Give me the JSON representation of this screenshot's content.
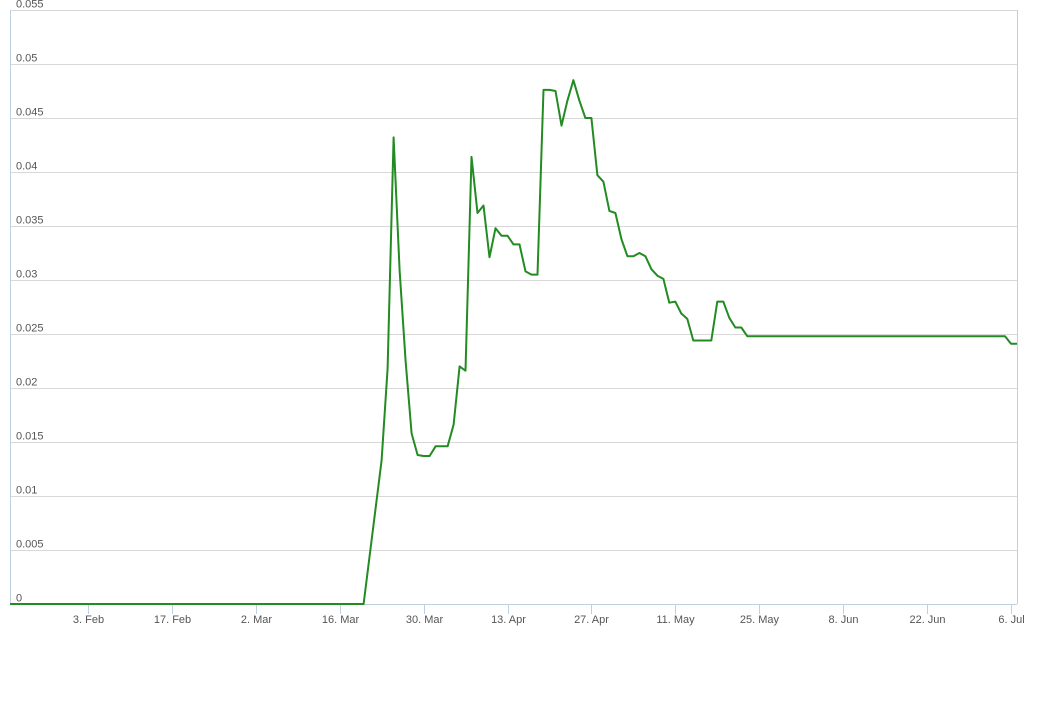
{
  "chart_data": {
    "type": "line",
    "title": "",
    "xlabel": "",
    "ylabel": "",
    "ylim": [
      0,
      0.055
    ],
    "y_ticks": [
      {
        "value": 0,
        "label": "0"
      },
      {
        "value": 0.005,
        "label": "0.005"
      },
      {
        "value": 0.01,
        "label": "0.01"
      },
      {
        "value": 0.015,
        "label": "0.015"
      },
      {
        "value": 0.02,
        "label": "0.02"
      },
      {
        "value": 0.025,
        "label": "0.025"
      },
      {
        "value": 0.03,
        "label": "0.03"
      },
      {
        "value": 0.035,
        "label": "0.035"
      },
      {
        "value": 0.04,
        "label": "0.04"
      },
      {
        "value": 0.045,
        "label": "0.045"
      },
      {
        "value": 0.05,
        "label": "0.05"
      },
      {
        "value": 0.055,
        "label": "0.055"
      }
    ],
    "x_range": [
      "2020-01-21",
      "2020-07-07"
    ],
    "x_ticks": [
      {
        "date": "2020-02-03",
        "label": "3. Feb"
      },
      {
        "date": "2020-02-17",
        "label": "17. Feb"
      },
      {
        "date": "2020-03-02",
        "label": "2. Mar"
      },
      {
        "date": "2020-03-16",
        "label": "16. Mar"
      },
      {
        "date": "2020-03-30",
        "label": "30. Mar"
      },
      {
        "date": "2020-04-13",
        "label": "13. Apr"
      },
      {
        "date": "2020-04-27",
        "label": "27. Apr"
      },
      {
        "date": "2020-05-11",
        "label": "11. May"
      },
      {
        "date": "2020-05-25",
        "label": "25. May"
      },
      {
        "date": "2020-06-08",
        "label": "8. Jun"
      },
      {
        "date": "2020-06-22",
        "label": "22. Jun"
      },
      {
        "date": "2020-07-06",
        "label": "6. Jul"
      }
    ],
    "grid": true,
    "legend": "none",
    "colors": {
      "line": "#228b22",
      "grid": "#d8d8d8",
      "axis": "#c0d0e0",
      "tick_label": "#555555"
    },
    "series": [
      {
        "x": [
          "2020-01-21",
          "2020-02-10",
          "2020-03-01",
          "2020-03-20",
          "2020-03-23",
          "2020-03-24",
          "2020-03-25",
          "2020-03-26",
          "2020-03-27",
          "2020-03-28",
          "2020-03-29",
          "2020-03-30",
          "2020-03-31",
          "2020-04-01",
          "2020-04-02",
          "2020-04-03",
          "2020-04-04",
          "2020-04-05",
          "2020-04-06",
          "2020-04-07",
          "2020-04-08",
          "2020-04-09",
          "2020-04-10",
          "2020-04-11",
          "2020-04-12",
          "2020-04-13",
          "2020-04-14",
          "2020-04-15",
          "2020-04-16",
          "2020-04-17",
          "2020-04-18",
          "2020-04-19",
          "2020-04-20",
          "2020-04-21",
          "2020-04-22",
          "2020-04-23",
          "2020-04-24",
          "2020-04-25",
          "2020-04-26",
          "2020-04-27",
          "2020-04-28",
          "2020-04-29",
          "2020-04-30",
          "2020-05-01",
          "2020-05-02",
          "2020-05-03",
          "2020-05-04",
          "2020-05-05",
          "2020-05-06",
          "2020-05-07",
          "2020-05-08",
          "2020-05-09",
          "2020-05-10",
          "2020-05-11",
          "2020-05-12",
          "2020-05-13",
          "2020-05-14",
          "2020-05-15",
          "2020-05-16",
          "2020-05-17",
          "2020-05-18",
          "2020-05-19",
          "2020-05-20",
          "2020-05-21",
          "2020-05-22",
          "2020-05-23",
          "2020-05-24",
          "2020-05-25",
          "2020-05-26",
          "2020-05-27",
          "2020-05-28",
          "2020-05-29",
          "2020-05-30",
          "2020-05-31",
          "2020-06-01",
          "2020-06-02",
          "2020-06-03",
          "2020-06-04",
          "2020-06-05",
          "2020-06-06",
          "2020-06-07",
          "2020-06-08",
          "2020-06-09",
          "2020-06-10",
          "2020-06-11",
          "2020-06-12",
          "2020-06-13",
          "2020-06-14",
          "2020-06-15",
          "2020-06-16",
          "2020-06-17",
          "2020-06-18",
          "2020-06-19",
          "2020-06-20",
          "2020-06-21",
          "2020-06-22",
          "2020-06-23",
          "2020-06-24",
          "2020-06-25",
          "2020-06-26",
          "2020-06-27",
          "2020-06-28",
          "2020-06-29",
          "2020-06-30",
          "2020-07-01",
          "2020-07-02",
          "2020-07-03",
          "2020-07-04",
          "2020-07-05",
          "2020-07-06",
          "2020-07-07"
        ],
        "y": [
          0,
          0,
          0,
          0,
          0.0133,
          0.0218,
          0.0432,
          0.0309,
          0.0225,
          0.0158,
          0.0138,
          0.0137,
          0.0137,
          0.0146,
          0.0146,
          0.0146,
          0.0166,
          0.022,
          0.0216,
          0.0414,
          0.0362,
          0.0369,
          0.0321,
          0.0348,
          0.0341,
          0.0341,
          0.0333,
          0.0333,
          0.0308,
          0.0305,
          0.0305,
          0.0476,
          0.0476,
          0.0475,
          0.0443,
          0.0466,
          0.0485,
          0.0466,
          0.045,
          0.045,
          0.0397,
          0.0391,
          0.0364,
          0.0362,
          0.0338,
          0.0322,
          0.0322,
          0.0325,
          0.0322,
          0.031,
          0.0304,
          0.0301,
          0.0279,
          0.028,
          0.0269,
          0.0264,
          0.0244,
          0.0244,
          0.0244,
          0.0244,
          0.028,
          0.028,
          0.0265,
          0.0256,
          0.0256,
          0.0248,
          0.0248,
          0.0248,
          0.0248,
          0.0248,
          0.0248,
          0.0248,
          0.0248,
          0.0248,
          0.0248,
          0.0248,
          0.0248,
          0.0248,
          0.0248,
          0.0248,
          0.0248,
          0.0248,
          0.0248,
          0.0248,
          0.0248,
          0.0248,
          0.0248,
          0.0248,
          0.0248,
          0.0248,
          0.0248,
          0.0248,
          0.0248,
          0.0248,
          0.0248,
          0.0248,
          0.0248,
          0.0248,
          0.0248,
          0.0248,
          0.0248,
          0.0248,
          0.0248,
          0.0248,
          0.0248,
          0.0248,
          0.0248,
          0.0248,
          0.0248,
          0.0241,
          0.0241
        ]
      }
    ]
  }
}
